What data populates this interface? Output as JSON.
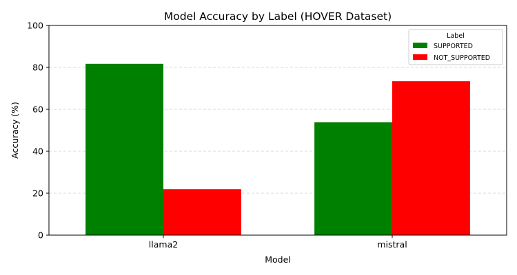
{
  "chart_data": {
    "type": "bar",
    "title": "Model Accuracy by Label (HOVER Dataset)",
    "xlabel": "Model",
    "ylabel": "Accuracy (%)",
    "categories": [
      "llama2",
      "mistral"
    ],
    "series": [
      {
        "name": "SUPPORTED",
        "color": "#008000",
        "values": [
          81.7,
          53.8
        ]
      },
      {
        "name": "NOT_SUPPORTED",
        "color": "#ff0000",
        "values": [
          21.9,
          73.4
        ]
      }
    ],
    "ylim": [
      0,
      100
    ],
    "yticks": [
      0,
      20,
      40,
      60,
      80,
      100
    ],
    "grid": "y-dashed",
    "legend": {
      "title": "Label",
      "position": "top-right"
    }
  }
}
